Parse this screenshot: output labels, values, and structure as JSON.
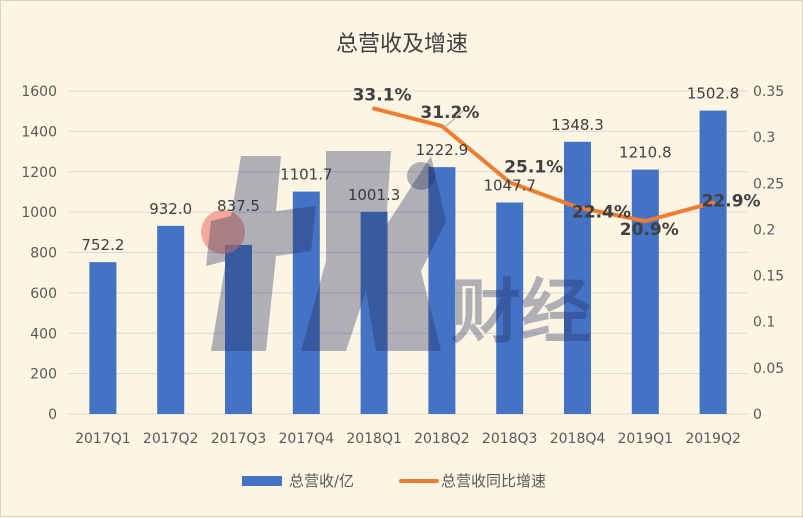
{
  "chart_data": {
    "type": "bar",
    "title": "总营收及增速",
    "categories": [
      "2017Q1",
      "2017Q2",
      "2017Q3",
      "2017Q4",
      "2018Q1",
      "2018Q2",
      "2018Q3",
      "2018Q4",
      "2019Q1",
      "2019Q2"
    ],
    "series": [
      {
        "name": "总营收/亿",
        "type": "bar",
        "axis": "left",
        "color": "#4472c4",
        "values": [
          752.2,
          932.0,
          837.5,
          1101.7,
          1001.3,
          1222.9,
          1047.7,
          1348.3,
          1210.8,
          1502.8
        ],
        "labels": [
          "752.2",
          "932.0",
          "837.5",
          "1101.7",
          "1001.3",
          "1222.9",
          "1047.7",
          "1348.3",
          "1210.8",
          "1502.8"
        ]
      },
      {
        "name": "总营收同比增速",
        "type": "line",
        "axis": "right",
        "color": "#ed7d31",
        "values": [
          null,
          null,
          null,
          null,
          0.331,
          0.312,
          0.251,
          0.224,
          0.209,
          0.229
        ],
        "labels": [
          "",
          "",
          "",
          "",
          "33.1%",
          "31.2%",
          "25.1%",
          "22.4%",
          "20.9%",
          "22.9%"
        ]
      }
    ],
    "y_left": {
      "min": 0,
      "max": 1600,
      "ticks": [
        "0",
        "200",
        "400",
        "600",
        "800",
        "1000",
        "1200",
        "1400",
        "1600"
      ]
    },
    "y_right": {
      "min": 0,
      "max": 0.35,
      "ticks": [
        "0",
        "0.05",
        "0.1",
        "0.15",
        "0.2",
        "0.25",
        "0.3",
        "0.35"
      ]
    },
    "grid": true,
    "legend_position": "bottom"
  },
  "watermark": {
    "text": "财经",
    "color": "#1f2f5e"
  }
}
